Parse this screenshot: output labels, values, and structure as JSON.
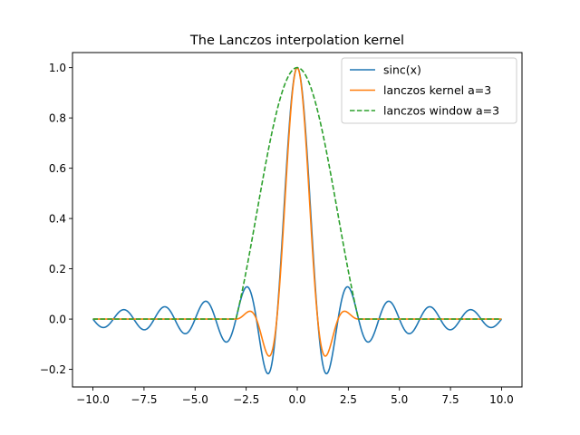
{
  "chart_data": {
    "type": "line",
    "title": "The Lanczos interpolation kernel",
    "xlabel": "",
    "ylabel": "",
    "xlim": [
      -11,
      11
    ],
    "ylim": [
      -0.27,
      1.06
    ],
    "x_range": [
      -10,
      10
    ],
    "lanczos_a": 3,
    "xticks": [
      -10.0,
      -7.5,
      -5.0,
      -2.5,
      0.0,
      2.5,
      5.0,
      7.5,
      10.0
    ],
    "xtick_labels": [
      "−10.0",
      "−7.5",
      "−5.0",
      "−2.5",
      "0.0",
      "2.5",
      "5.0",
      "7.5",
      "10.0"
    ],
    "yticks": [
      -0.2,
      0.0,
      0.2,
      0.4,
      0.6,
      0.8,
      1.0
    ],
    "ytick_labels": [
      "−0.2",
      "0.0",
      "0.2",
      "0.4",
      "0.6",
      "0.8",
      "1.0"
    ],
    "grid": false,
    "legend_position": "top-right",
    "series": [
      {
        "name": "sinc(x)",
        "function": "sinc",
        "color": "#1f77b4",
        "dash": "solid"
      },
      {
        "name": "lanczos kernel a=3",
        "function": "lanczos_kernel",
        "color": "#ff7f0e",
        "dash": "solid"
      },
      {
        "name": "lanczos window a=3",
        "function": "lanczos_window",
        "color": "#2ca02c",
        "dash": "dashed"
      }
    ]
  }
}
